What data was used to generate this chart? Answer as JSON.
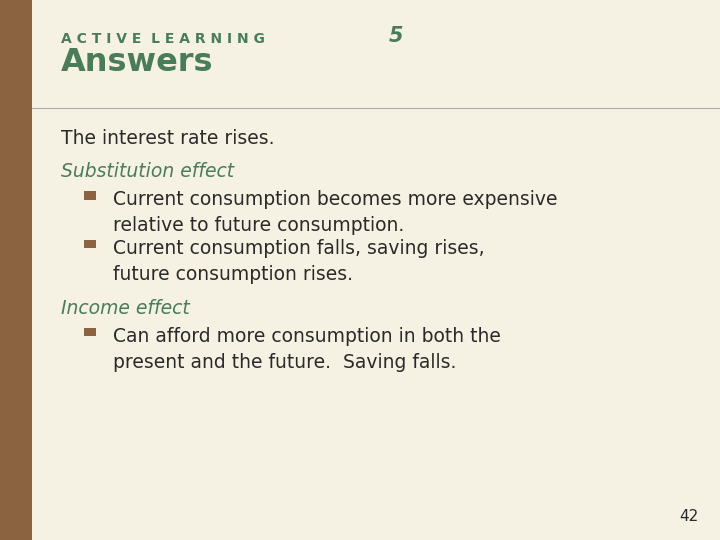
{
  "bg_color": "#f5f2e3",
  "left_bar_color": "#8B6340",
  "header_label_color": "#4a7c59",
  "header_number_color": "#4a7c59",
  "header_label": "A C T I V E  L E A R N I N G",
  "header_number": "5",
  "subtitle": "Answers",
  "subtitle_color": "#4a7c59",
  "divider_color": "#aaaaaa",
  "body_color": "#2a2a2a",
  "italic_color": "#4a7c59",
  "bullet_color": "#8B6340",
  "line1": "The interest rate rises.",
  "subhead1": "Substitution effect",
  "bullet1a_line1": "Current consumption becomes more expensive",
  "bullet1a_line2": "relative to future consumption.",
  "bullet1b_line1": "Current consumption falls, saving rises,",
  "bullet1b_line2": "future consumption rises.",
  "subhead2": "Income effect",
  "bullet2a_line1": "Can afford more consumption in both the",
  "bullet2a_line2": "present and the future.  Saving falls.",
  "page_number": "42",
  "left_bar_width": 0.045
}
